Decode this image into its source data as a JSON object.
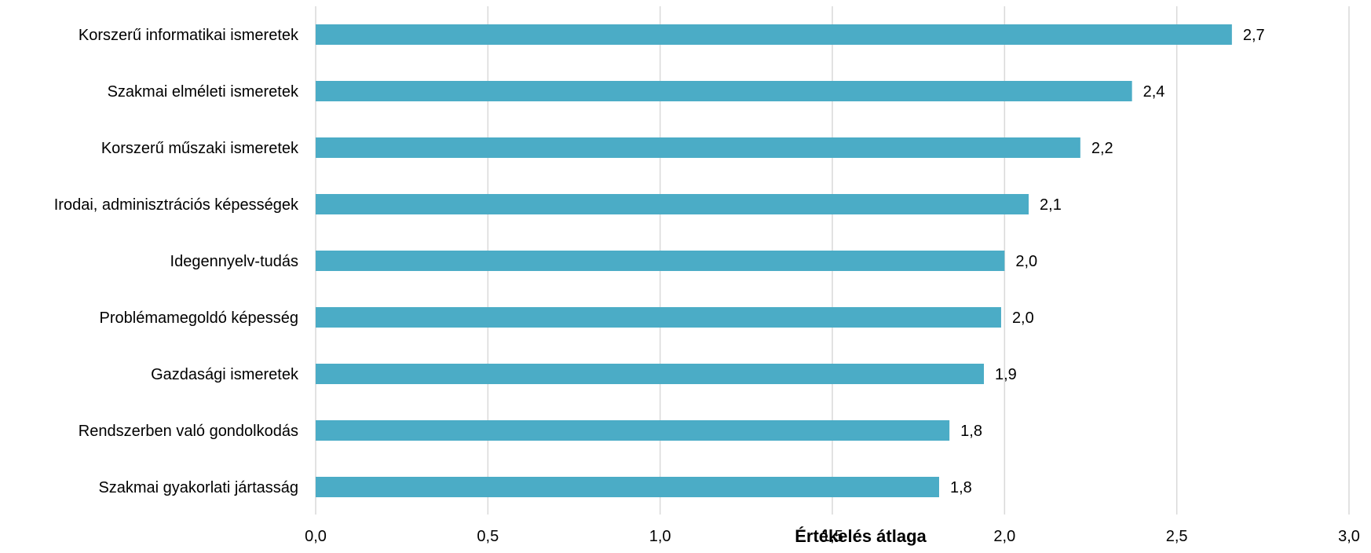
{
  "chart_data": {
    "type": "bar",
    "orientation": "horizontal",
    "categories": [
      "Korszerű informatikai ismeretek",
      "Szakmai elméleti ismeretek",
      "Korszerű műszaki ismeretek",
      "Irodai, adminisztrációs képességek",
      "Idegennyelv-tudás",
      "Problémamegoldó képesség",
      "Gazdasági ismeretek",
      "Rendszerben való gondolkodás",
      "Szakmai gyakorlati jártasság"
    ],
    "values": [
      2.66,
      2.37,
      2.22,
      2.07,
      2.0,
      1.99,
      1.94,
      1.84,
      1.81
    ],
    "data_labels": [
      "2,7",
      "2,4",
      "2,2",
      "2,1",
      "2,0",
      "2,0",
      "1,9",
      "1,8",
      "1,8"
    ],
    "xlim": [
      0,
      3
    ],
    "ticks": [
      0,
      0.5,
      1,
      1.5,
      2,
      2.5,
      3
    ],
    "tick_labels": [
      "0,0",
      "0,5",
      "1,0",
      "1,5",
      "2,0",
      "2,5",
      "3,0"
    ],
    "xlabel": "Értékelés átlaga",
    "ylabel": "",
    "grid": "vertical",
    "bar_color": "#4bacc6",
    "grid_color": "#d9d9d9"
  }
}
